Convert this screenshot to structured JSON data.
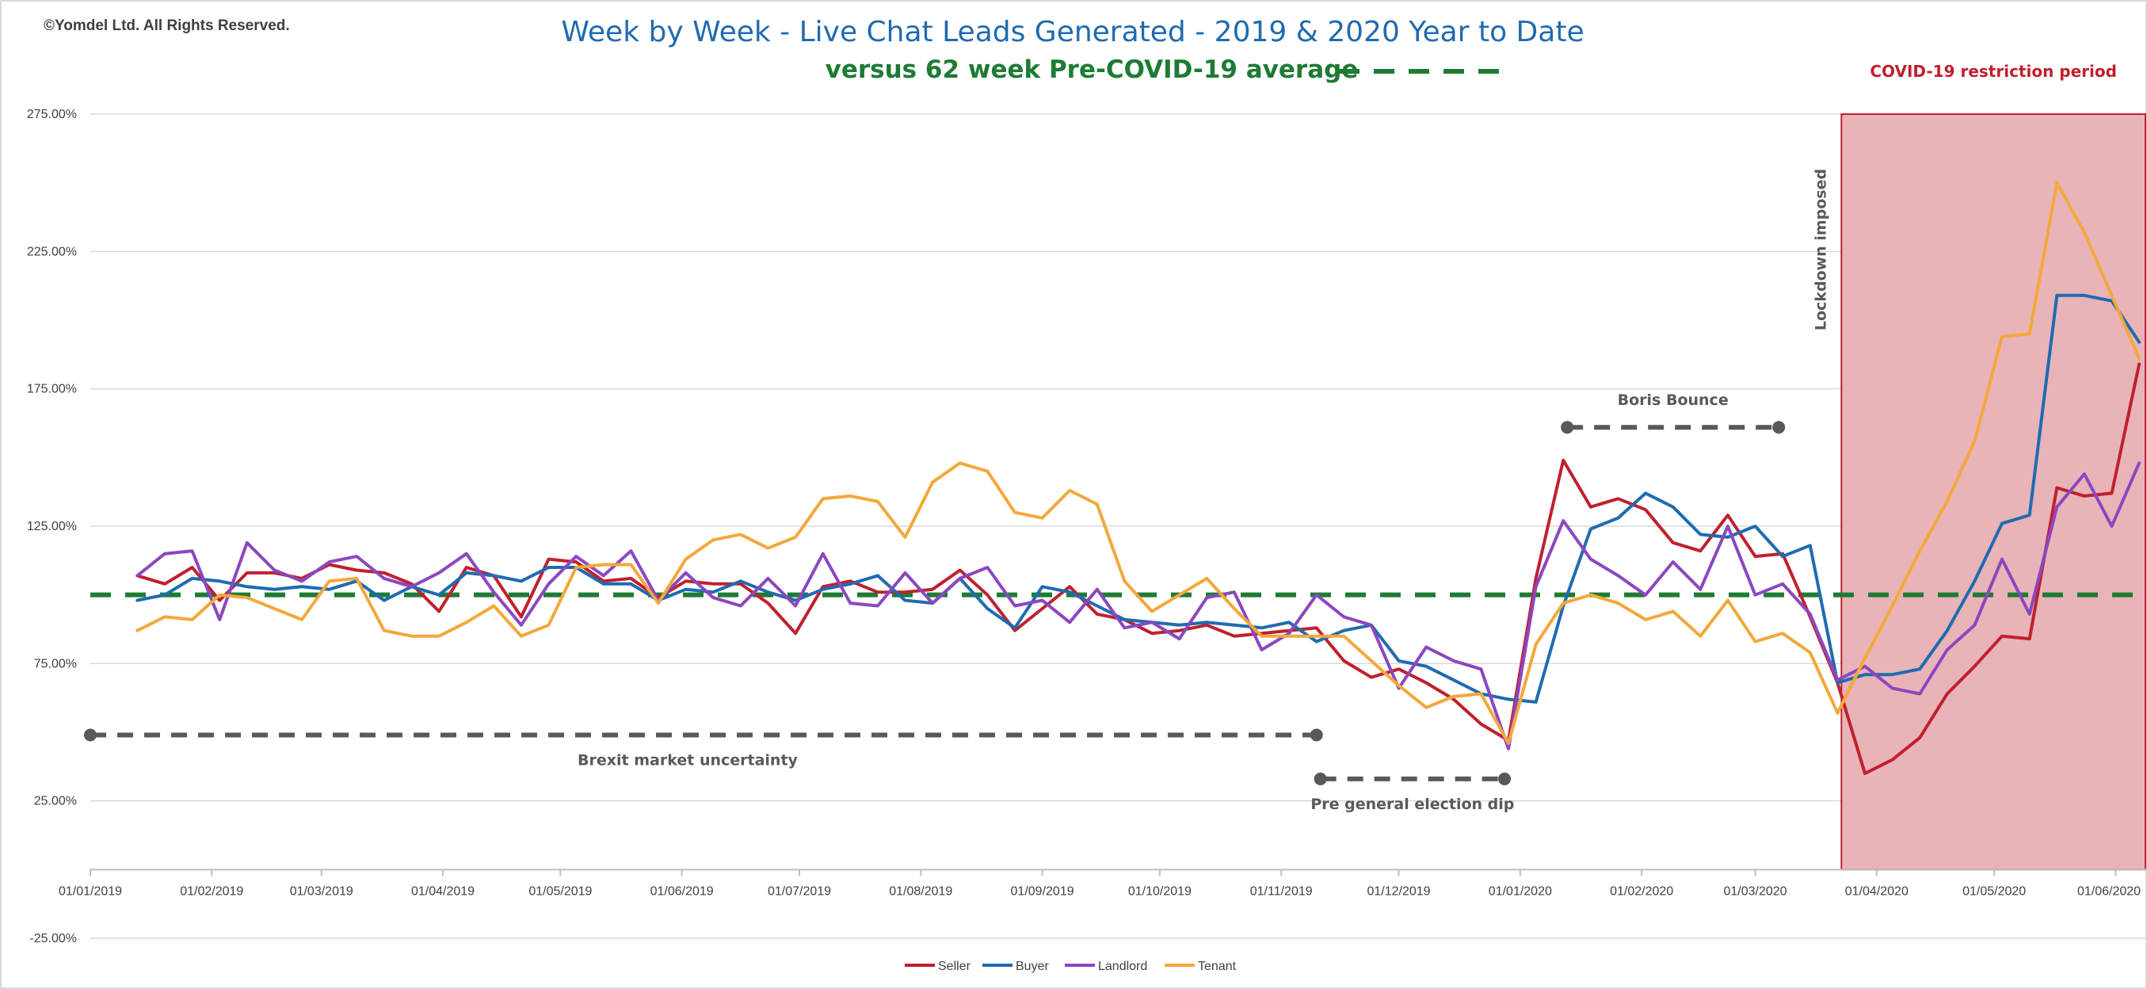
{
  "copyright": "©Yomdel Ltd. All Rights Reserved.",
  "chart_data": {
    "type": "line",
    "title": "Week by Week - Live Chat Leads Generated - 2019 & 2020 Year to Date",
    "subtitle": "versus 62 week Pre-COVID-19 average",
    "xlabel": "",
    "ylabel": "",
    "ylim": [
      -0.25,
      2.75
    ],
    "y_ticks": [
      "275.00%",
      "225.00%",
      "175.00%",
      "125.00%",
      "75.00%",
      "25.00%",
      "-25.00%"
    ],
    "y_tick_values": [
      2.75,
      2.25,
      1.75,
      1.25,
      0.75,
      0.25,
      -0.25
    ],
    "x_range": [
      "2019-01-01",
      "2020-06-09"
    ],
    "x_ticks": [
      "01/01/2019",
      "01/02/2019",
      "01/03/2019",
      "01/04/2019",
      "01/05/2019",
      "01/06/2019",
      "01/07/2019",
      "01/08/2019",
      "01/09/2019",
      "01/10/2019",
      "01/11/2019",
      "01/12/2019",
      "01/01/2020",
      "01/02/2020",
      "01/03/2020",
      "01/04/2020",
      "01/05/2020",
      "01/06/2020"
    ],
    "x_tick_dates": [
      "2019-01-01",
      "2019-02-01",
      "2019-03-01",
      "2019-04-01",
      "2019-05-01",
      "2019-06-01",
      "2019-07-01",
      "2019-08-01",
      "2019-09-01",
      "2019-10-01",
      "2019-11-01",
      "2019-12-01",
      "2020-01-01",
      "2020-02-01",
      "2020-03-01",
      "2020-04-01",
      "2020-05-01",
      "2020-06-01"
    ],
    "grid": true,
    "legend_position": "bottom",
    "reference_line": {
      "label": "versus 62 week Pre-COVID-19 average",
      "value": 1.0,
      "color": "#1E7B34"
    },
    "x": [
      "2019-01-13",
      "2019-01-20",
      "2019-01-27",
      "2019-02-03",
      "2019-02-10",
      "2019-02-17",
      "2019-02-24",
      "2019-03-03",
      "2019-03-10",
      "2019-03-17",
      "2019-03-24",
      "2019-03-31",
      "2019-04-07",
      "2019-04-14",
      "2019-04-21",
      "2019-04-28",
      "2019-05-05",
      "2019-05-12",
      "2019-05-19",
      "2019-05-26",
      "2019-06-02",
      "2019-06-09",
      "2019-06-16",
      "2019-06-23",
      "2019-06-30",
      "2019-07-07",
      "2019-07-14",
      "2019-07-21",
      "2019-07-28",
      "2019-08-04",
      "2019-08-11",
      "2019-08-18",
      "2019-08-25",
      "2019-09-01",
      "2019-09-08",
      "2019-09-15",
      "2019-09-22",
      "2019-09-29",
      "2019-10-06",
      "2019-10-13",
      "2019-10-20",
      "2019-10-27",
      "2019-11-03",
      "2019-11-10",
      "2019-11-17",
      "2019-11-24",
      "2019-12-01",
      "2019-12-08",
      "2019-12-15",
      "2019-12-22",
      "2019-12-29",
      "2020-01-05",
      "2020-01-12",
      "2020-01-19",
      "2020-01-26",
      "2020-02-02",
      "2020-02-09",
      "2020-02-16",
      "2020-02-23",
      "2020-03-01",
      "2020-03-08",
      "2020-03-15",
      "2020-03-22",
      "2020-03-29",
      "2020-04-05",
      "2020-04-12",
      "2020-04-19",
      "2020-04-26",
      "2020-05-03",
      "2020-05-10",
      "2020-05-17",
      "2020-05-24",
      "2020-05-31",
      "2020-06-07"
    ],
    "series": [
      {
        "name": "Seller",
        "color": "#C0202E",
        "values": [
          1.07,
          1.04,
          1.1,
          0.98,
          1.08,
          1.08,
          1.06,
          1.11,
          1.09,
          1.08,
          1.04,
          0.94,
          1.1,
          1.07,
          0.92,
          1.13,
          1.12,
          1.05,
          1.06,
          0.99,
          1.05,
          1.04,
          1.04,
          0.97,
          0.86,
          1.03,
          1.05,
          1.01,
          1.01,
          1.02,
          1.09,
          1.0,
          0.87,
          0.95,
          1.03,
          0.93,
          0.91,
          0.86,
          0.87,
          0.89,
          0.85,
          0.86,
          0.87,
          0.88,
          0.76,
          0.7,
          0.73,
          0.68,
          0.62,
          0.53,
          0.47,
          1.06,
          1.49,
          1.32,
          1.35,
          1.31,
          1.19,
          1.16,
          1.29,
          1.14,
          1.15,
          0.92,
          0.68,
          0.35,
          0.4,
          0.48,
          0.64,
          0.74,
          0.85,
          0.84,
          1.39,
          1.36,
          1.37,
          1.84
        ]
      },
      {
        "name": "Buyer",
        "color": "#1F6BB0",
        "values": [
          0.98,
          1.0,
          1.06,
          1.05,
          1.03,
          1.02,
          1.03,
          1.02,
          1.05,
          0.98,
          1.03,
          1.0,
          1.08,
          1.07,
          1.05,
          1.1,
          1.1,
          1.04,
          1.04,
          0.98,
          1.02,
          1.01,
          1.05,
          1.01,
          0.98,
          1.02,
          1.04,
          1.07,
          0.98,
          0.97,
          1.06,
          0.95,
          0.88,
          1.03,
          1.01,
          0.96,
          0.91,
          0.9,
          0.89,
          0.9,
          0.89,
          0.88,
          0.9,
          0.83,
          0.87,
          0.89,
          0.76,
          0.74,
          0.69,
          0.64,
          0.62,
          0.61,
          0.96,
          1.24,
          1.28,
          1.37,
          1.32,
          1.22,
          1.21,
          1.25,
          1.14,
          1.18,
          0.68,
          0.71,
          0.71,
          0.73,
          0.87,
          1.05,
          1.26,
          1.29,
          2.09,
          2.09,
          2.07,
          1.92
        ]
      },
      {
        "name": "Landlord",
        "color": "#8B47C0",
        "values": [
          1.07,
          1.15,
          1.16,
          0.91,
          1.19,
          1.09,
          1.05,
          1.12,
          1.14,
          1.06,
          1.03,
          1.08,
          1.15,
          1.01,
          0.89,
          1.04,
          1.14,
          1.07,
          1.16,
          0.98,
          1.08,
          0.99,
          0.96,
          1.06,
          0.96,
          1.15,
          0.97,
          0.96,
          1.08,
          0.97,
          1.06,
          1.1,
          0.96,
          0.98,
          0.9,
          1.02,
          0.88,
          0.9,
          0.84,
          0.99,
          1.01,
          0.8,
          0.86,
          1.0,
          0.92,
          0.89,
          0.66,
          0.81,
          0.76,
          0.73,
          0.44,
          1.03,
          1.27,
          1.13,
          1.07,
          1.0,
          1.12,
          1.02,
          1.25,
          1.0,
          1.04,
          0.93,
          0.69,
          0.74,
          0.66,
          0.64,
          0.8,
          0.89,
          1.13,
          0.93,
          1.32,
          1.44,
          1.25,
          1.48
        ]
      },
      {
        "name": "Tenant",
        "color": "#F3A83B",
        "values": [
          0.87,
          0.92,
          0.91,
          1.0,
          0.99,
          0.95,
          0.91,
          1.05,
          1.06,
          0.87,
          0.85,
          0.85,
          0.9,
          0.96,
          0.85,
          0.89,
          1.1,
          1.11,
          1.11,
          0.97,
          1.13,
          1.2,
          1.22,
          1.17,
          1.21,
          1.35,
          1.36,
          1.34,
          1.21,
          1.41,
          1.48,
          1.45,
          1.3,
          1.28,
          1.38,
          1.33,
          1.05,
          0.94,
          1.0,
          1.06,
          0.95,
          0.85,
          0.85,
          0.85,
          0.85,
          0.76,
          0.67,
          0.59,
          0.63,
          0.64,
          0.46,
          0.82,
          0.97,
          1.0,
          0.97,
          0.91,
          0.94,
          0.85,
          0.98,
          0.83,
          0.86,
          0.79,
          0.57,
          0.77,
          0.96,
          1.16,
          1.34,
          1.56,
          1.94,
          1.95,
          2.5,
          2.32,
          2.09,
          1.86
        ]
      }
    ],
    "annotations": [
      {
        "text": "Brexit market uncertainty",
        "from": "2019-01-01",
        "to": "2019-11-10",
        "y": 0.49
      },
      {
        "text": "Pre general election dip",
        "from": "2019-11-11",
        "to": "2019-12-28",
        "y": 0.33
      },
      {
        "text": "Boris Bounce",
        "from": "2020-01-13",
        "to": "2020-03-07",
        "y": 1.61
      },
      {
        "text": "Lockdown imposed",
        "date": "2020-03-23"
      }
    ],
    "shaded_region": {
      "label": "COVID-19 restriction period",
      "from": "2020-03-23",
      "to": "2020-06-14",
      "color": "#E8B4B8",
      "border": "#C0202E"
    }
  }
}
